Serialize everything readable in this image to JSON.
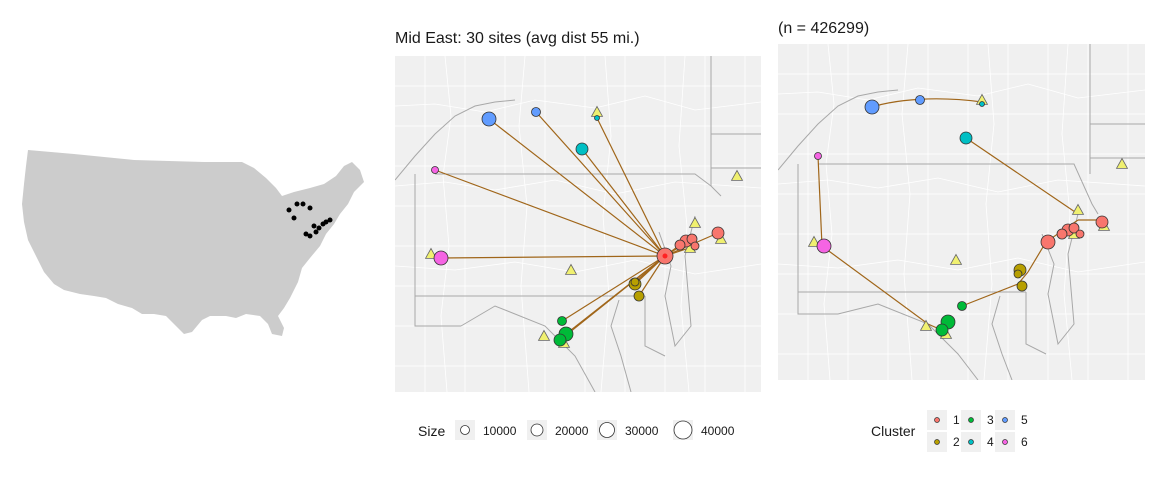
{
  "left_map": {
    "title": "Mid East: 30 sites (avg dist 55 mi.)",
    "hub": "hub-marker",
    "size_legend": {
      "title": "Size",
      "items": [
        {
          "label": "10000",
          "value": 10000
        },
        {
          "label": "20000",
          "value": 20000
        },
        {
          "label": "30000",
          "value": 30000
        },
        {
          "label": "40000",
          "value": 40000
        }
      ]
    }
  },
  "right_map": {
    "title": "(n = 426299)",
    "cluster_legend": {
      "title": "Cluster",
      "items": [
        {
          "label": "1",
          "color": "#f8766d"
        },
        {
          "label": "2",
          "color": "#b79f00"
        },
        {
          "label": "3",
          "color": "#00ba38"
        },
        {
          "label": "4",
          "color": "#00bfc4"
        },
        {
          "label": "5",
          "color": "#619cff"
        },
        {
          "label": "6",
          "color": "#f564e3"
        }
      ]
    }
  },
  "colors": {
    "land": "#cccccc",
    "map_bg": "#f0f0f0",
    "route": "#a0661a",
    "candidate": "#f0f070",
    "border": "#bdbdbd"
  }
}
